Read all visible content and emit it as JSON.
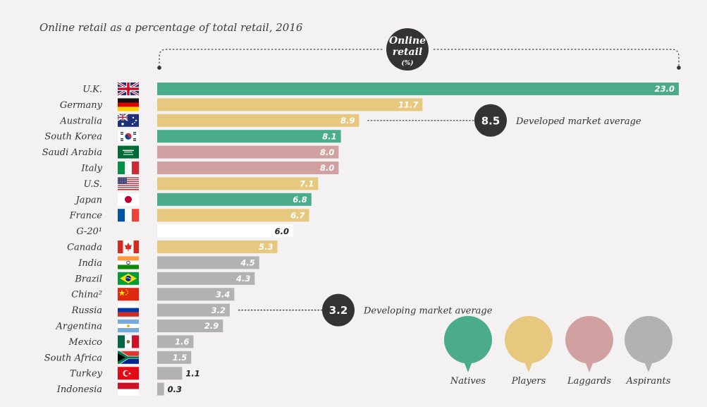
{
  "title": "Online retail as a percentage of total retail, 2016",
  "header": {
    "line1": "Online",
    "line2": "retail",
    "unit": "(%)"
  },
  "colors": {
    "Natives": "#4aac8a",
    "Players": "#e6c87f",
    "Laggards": "#d1a0a1",
    "Aspirants": "#b3b2b3",
    "Benchmark": "#ffffff",
    "bubble": "#333333"
  },
  "chart_data": {
    "type": "bar",
    "orientation": "horizontal",
    "unit": "%",
    "xlim": [
      0,
      23
    ],
    "categories": [
      "U.K.",
      "Germany",
      "Australia",
      "South Korea",
      "Saudi Arabia",
      "Italy",
      "U.S.",
      "Japan",
      "France",
      "G-20¹",
      "Canada",
      "India",
      "Brazil",
      "China²",
      "Russia",
      "Argentina",
      "Mexico",
      "South Africa",
      "Turkey",
      "Indonesia"
    ],
    "value_labels": [
      "23.0",
      "11.7",
      "8.9",
      "8.1",
      "8.0",
      "8.0",
      "7.1",
      "6.8",
      "6.7",
      "6.0",
      "5.3",
      "4.5",
      "4.3",
      "3.4",
      "3.2",
      "2.9",
      "1.6",
      "1.5",
      "1.1",
      "0.3"
    ],
    "values": [
      23.0,
      11.7,
      8.9,
      8.1,
      8.0,
      8.0,
      7.1,
      6.8,
      6.7,
      6.0,
      5.3,
      4.5,
      4.3,
      3.4,
      3.2,
      2.9,
      1.6,
      1.5,
      1.1,
      0.3
    ],
    "groups": [
      "Natives",
      "Players",
      "Players",
      "Natives",
      "Laggards",
      "Laggards",
      "Players",
      "Natives",
      "Players",
      "Benchmark",
      "Players",
      "Aspirants",
      "Aspirants",
      "Aspirants",
      "Aspirants",
      "Aspirants",
      "Aspirants",
      "Aspirants",
      "Aspirants",
      "Aspirants"
    ],
    "flags": [
      "uk",
      "germany",
      "australia",
      "south-korea",
      "saudi-arabia",
      "italy",
      "us",
      "japan",
      "france",
      "none",
      "canada",
      "india",
      "brazil",
      "china",
      "russia",
      "argentina",
      "mexico",
      "south-africa",
      "turkey",
      "indonesia"
    ],
    "averages": [
      {
        "value": 8.5,
        "value_label": "8.5",
        "label": "Developed market average",
        "anchor": "Australia"
      },
      {
        "value": 3.2,
        "value_label": "3.2",
        "label": "Developing market average",
        "anchor": "Russia"
      }
    ],
    "legend": [
      "Natives",
      "Players",
      "Laggards",
      "Aspirants"
    ],
    "legend_position": "bottom-right"
  }
}
